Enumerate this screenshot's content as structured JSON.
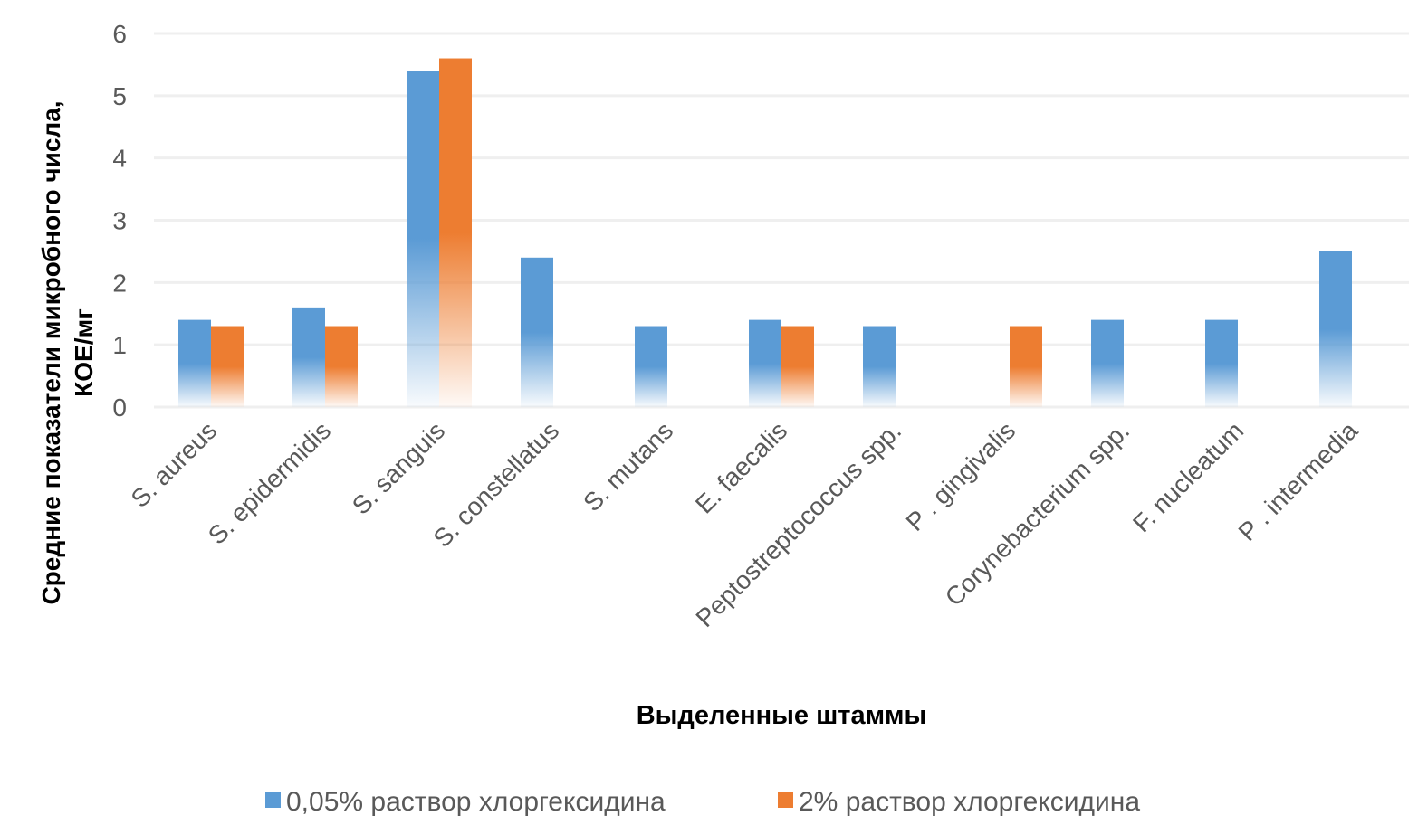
{
  "chart_data": {
    "type": "bar",
    "title": "",
    "xlabel": "Выделенные штаммы",
    "ylabel_lines": [
      "Средние показатели микробного числа,",
      "КОЕ/мг"
    ],
    "ylim": [
      0,
      6
    ],
    "yticks": [
      0,
      1,
      2,
      3,
      4,
      5,
      6
    ],
    "grid": true,
    "legend_position": "bottom",
    "categories": [
      "S. aureus",
      "S. epidermidis",
      "S. sanguis",
      "S. constellatus",
      "S. mutans",
      "E. faecalis",
      "Peptostreptococcus spp.",
      "P . gingivalis",
      "Corynebacterium spp.",
      "F. nucleatum",
      "P . intermedia"
    ],
    "series": [
      {
        "name": "0,05% раствор хлоргексидина",
        "color": "#5b9bd5",
        "values": [
          1.4,
          1.6,
          5.4,
          2.4,
          1.3,
          1.4,
          1.3,
          null,
          1.4,
          1.4,
          2.5
        ]
      },
      {
        "name": "2% раствор хлоргексидина",
        "color": "#ed7d31",
        "values": [
          1.3,
          1.3,
          5.6,
          null,
          null,
          1.3,
          null,
          1.3,
          null,
          null,
          null
        ]
      }
    ]
  }
}
